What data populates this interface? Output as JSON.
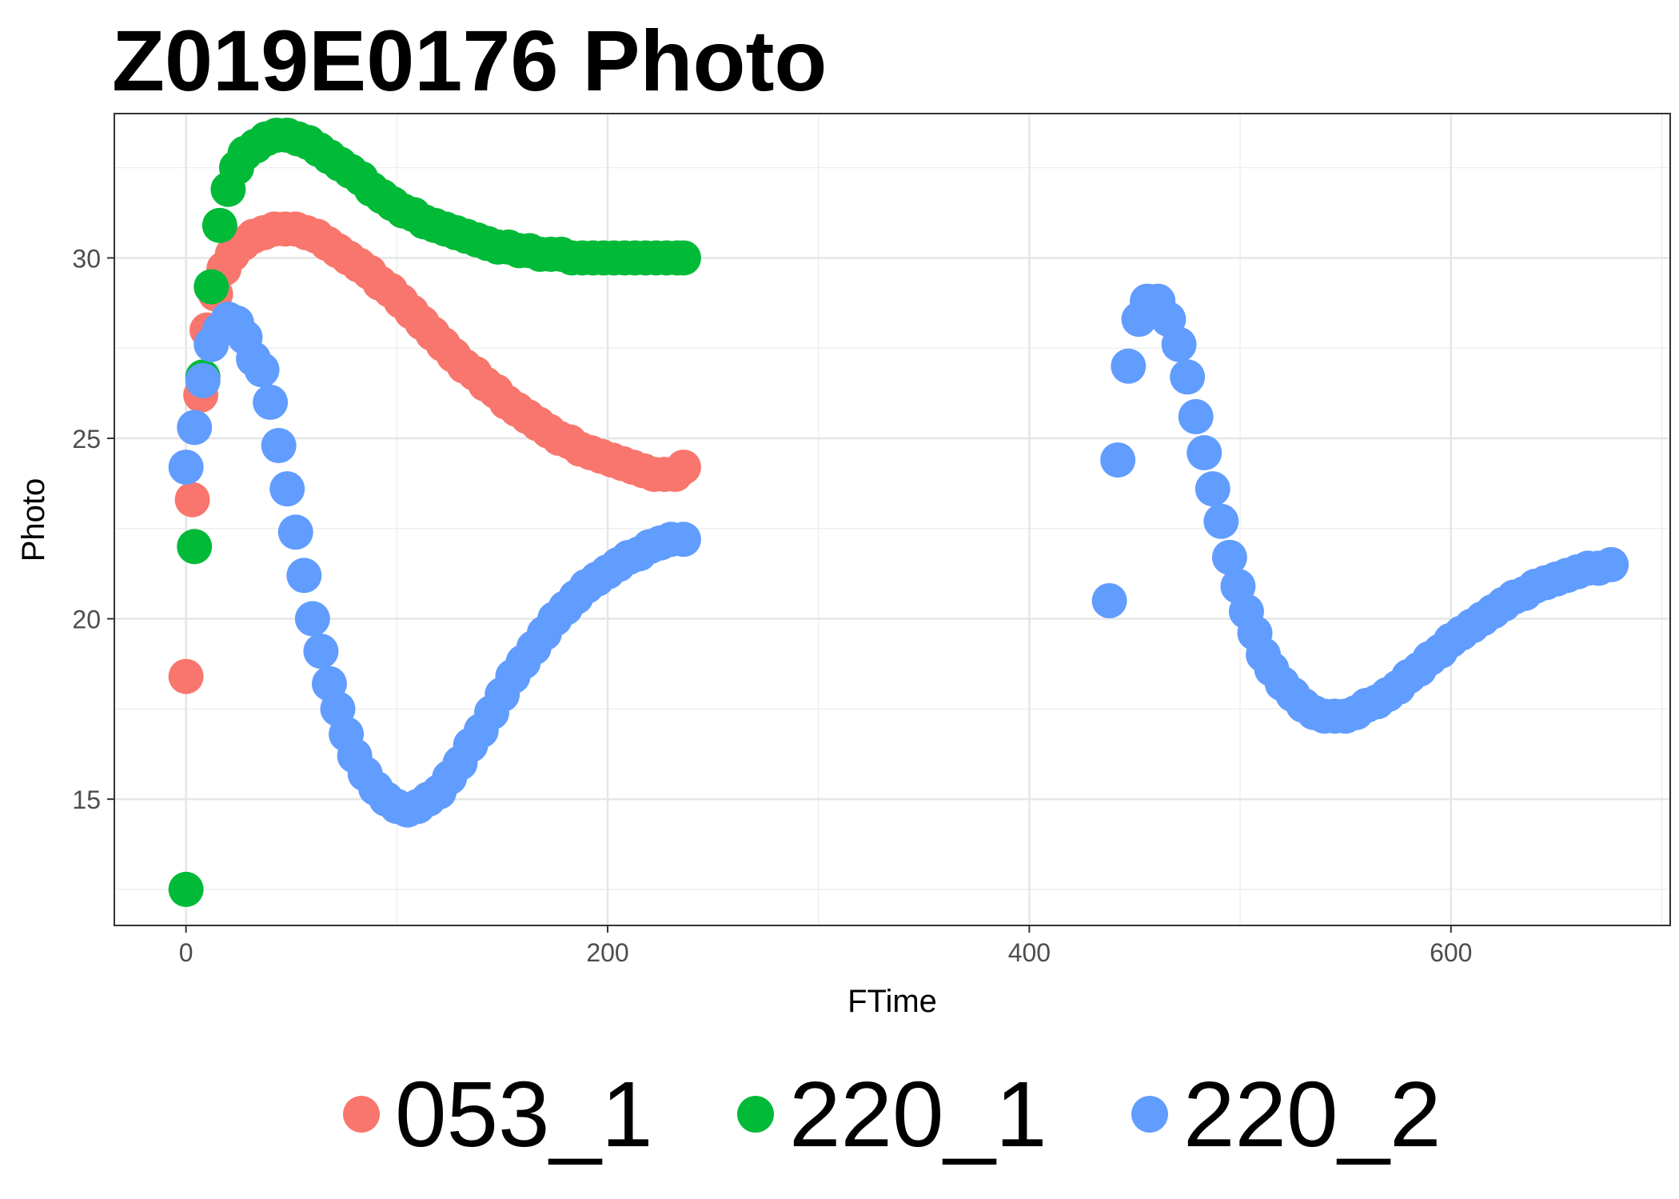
{
  "chart_data": {
    "type": "scatter",
    "title": "Z019E0176 Photo",
    "xlabel": "FTime",
    "ylabel": "Photo",
    "xlim": [
      -34,
      704
    ],
    "ylim": [
      11.5,
      34.0
    ],
    "x_ticks": [
      0,
      200,
      400,
      600
    ],
    "y_ticks": [
      15,
      20,
      25,
      30
    ],
    "grid": true,
    "legend_position": "bottom",
    "series": [
      {
        "name": "053_1",
        "color": "#F8766D",
        "points": [
          [
            0,
            18.4
          ],
          [
            3,
            23.3
          ],
          [
            7,
            26.2
          ],
          [
            10,
            28.0
          ],
          [
            14,
            29.0
          ],
          [
            18,
            29.7
          ],
          [
            22,
            30.1
          ],
          [
            27,
            30.4
          ],
          [
            32,
            30.6
          ],
          [
            37,
            30.7
          ],
          [
            42,
            30.8
          ],
          [
            47,
            30.8
          ],
          [
            52,
            30.8
          ],
          [
            57,
            30.7
          ],
          [
            62,
            30.6
          ],
          [
            67,
            30.4
          ],
          [
            72,
            30.2
          ],
          [
            77,
            30.0
          ],
          [
            82,
            29.8
          ],
          [
            87,
            29.6
          ],
          [
            92,
            29.3
          ],
          [
            97,
            29.1
          ],
          [
            102,
            28.8
          ],
          [
            107,
            28.5
          ],
          [
            112,
            28.2
          ],
          [
            117,
            27.9
          ],
          [
            122,
            27.6
          ],
          [
            127,
            27.3
          ],
          [
            132,
            27.0
          ],
          [
            137,
            26.8
          ],
          [
            142,
            26.5
          ],
          [
            147,
            26.3
          ],
          [
            152,
            26.0
          ],
          [
            157,
            25.8
          ],
          [
            162,
            25.6
          ],
          [
            167,
            25.4
          ],
          [
            172,
            25.2
          ],
          [
            177,
            25.0
          ],
          [
            182,
            24.9
          ],
          [
            187,
            24.7
          ],
          [
            192,
            24.6
          ],
          [
            197,
            24.5
          ],
          [
            202,
            24.4
          ],
          [
            207,
            24.3
          ],
          [
            212,
            24.2
          ],
          [
            217,
            24.1
          ],
          [
            222,
            24.0
          ],
          [
            227,
            24.0
          ],
          [
            232,
            24.0
          ],
          [
            236,
            24.2
          ]
        ]
      },
      {
        "name": "220_1",
        "color": "#00BA38",
        "points": [
          [
            0,
            12.5
          ],
          [
            4,
            22.0
          ],
          [
            8,
            26.7
          ],
          [
            12,
            29.2
          ],
          [
            16,
            30.9
          ],
          [
            20,
            31.9
          ],
          [
            24,
            32.5
          ],
          [
            28,
            32.9
          ],
          [
            33,
            33.1
          ],
          [
            38,
            33.3
          ],
          [
            43,
            33.4
          ],
          [
            48,
            33.4
          ],
          [
            53,
            33.3
          ],
          [
            58,
            33.2
          ],
          [
            63,
            33.0
          ],
          [
            68,
            32.8
          ],
          [
            73,
            32.6
          ],
          [
            78,
            32.4
          ],
          [
            83,
            32.2
          ],
          [
            88,
            31.9
          ],
          [
            93,
            31.7
          ],
          [
            98,
            31.5
          ],
          [
            103,
            31.3
          ],
          [
            108,
            31.2
          ],
          [
            113,
            31.0
          ],
          [
            118,
            30.9
          ],
          [
            123,
            30.8
          ],
          [
            128,
            30.7
          ],
          [
            133,
            30.6
          ],
          [
            138,
            30.5
          ],
          [
            143,
            30.4
          ],
          [
            148,
            30.3
          ],
          [
            153,
            30.3
          ],
          [
            158,
            30.2
          ],
          [
            163,
            30.2
          ],
          [
            168,
            30.1
          ],
          [
            173,
            30.1
          ],
          [
            178,
            30.1
          ],
          [
            183,
            30.0
          ],
          [
            188,
            30.0
          ],
          [
            193,
            30.0
          ],
          [
            198,
            30.0
          ],
          [
            203,
            30.0
          ],
          [
            208,
            30.0
          ],
          [
            213,
            30.0
          ],
          [
            218,
            30.0
          ],
          [
            223,
            30.0
          ],
          [
            228,
            30.0
          ],
          [
            233,
            30.0
          ],
          [
            236,
            30.0
          ]
        ]
      },
      {
        "name": "220_2",
        "color": "#619CFF",
        "points": [
          [
            0,
            24.2
          ],
          [
            4,
            25.3
          ],
          [
            8,
            26.6
          ],
          [
            12,
            27.6
          ],
          [
            16,
            28.0
          ],
          [
            20,
            28.3
          ],
          [
            24,
            28.2
          ],
          [
            28,
            27.8
          ],
          [
            32,
            27.2
          ],
          [
            36,
            26.9
          ],
          [
            40,
            26.0
          ],
          [
            44,
            24.8
          ],
          [
            48,
            23.6
          ],
          [
            52,
            22.4
          ],
          [
            56,
            21.2
          ],
          [
            60,
            20.0
          ],
          [
            64,
            19.1
          ],
          [
            68,
            18.2
          ],
          [
            72,
            17.5
          ],
          [
            76,
            16.8
          ],
          [
            80,
            16.2
          ],
          [
            85,
            15.7
          ],
          [
            90,
            15.3
          ],
          [
            95,
            15.0
          ],
          [
            100,
            14.8
          ],
          [
            105,
            14.7
          ],
          [
            110,
            14.8
          ],
          [
            115,
            15.0
          ],
          [
            120,
            15.2
          ],
          [
            125,
            15.6
          ],
          [
            130,
            16.0
          ],
          [
            135,
            16.5
          ],
          [
            140,
            16.9
          ],
          [
            145,
            17.4
          ],
          [
            150,
            17.9
          ],
          [
            155,
            18.4
          ],
          [
            160,
            18.8
          ],
          [
            165,
            19.2
          ],
          [
            170,
            19.6
          ],
          [
            175,
            20.0
          ],
          [
            180,
            20.3
          ],
          [
            185,
            20.6
          ],
          [
            190,
            20.9
          ],
          [
            195,
            21.1
          ],
          [
            200,
            21.3
          ],
          [
            205,
            21.5
          ],
          [
            210,
            21.7
          ],
          [
            215,
            21.8
          ],
          [
            220,
            22.0
          ],
          [
            225,
            22.1
          ],
          [
            230,
            22.2
          ],
          [
            236,
            22.2
          ],
          [
            438,
            20.5
          ],
          [
            442,
            24.4
          ],
          [
            447,
            27.0
          ],
          [
            452,
            28.3
          ],
          [
            456,
            28.8
          ],
          [
            461,
            28.8
          ],
          [
            466,
            28.3
          ],
          [
            471,
            27.6
          ],
          [
            475,
            26.7
          ],
          [
            479,
            25.6
          ],
          [
            483,
            24.6
          ],
          [
            487,
            23.6
          ],
          [
            491,
            22.7
          ],
          [
            495,
            21.7
          ],
          [
            499,
            20.9
          ],
          [
            503,
            20.2
          ],
          [
            507,
            19.6
          ],
          [
            511,
            19.0
          ],
          [
            515,
            18.6
          ],
          [
            520,
            18.2
          ],
          [
            525,
            17.9
          ],
          [
            530,
            17.6
          ],
          [
            535,
            17.4
          ],
          [
            540,
            17.3
          ],
          [
            545,
            17.3
          ],
          [
            550,
            17.3
          ],
          [
            555,
            17.4
          ],
          [
            560,
            17.6
          ],
          [
            565,
            17.7
          ],
          [
            570,
            17.9
          ],
          [
            575,
            18.1
          ],
          [
            580,
            18.4
          ],
          [
            585,
            18.6
          ],
          [
            590,
            18.9
          ],
          [
            595,
            19.1
          ],
          [
            600,
            19.4
          ],
          [
            605,
            19.6
          ],
          [
            610,
            19.8
          ],
          [
            615,
            20.0
          ],
          [
            620,
            20.2
          ],
          [
            625,
            20.4
          ],
          [
            630,
            20.6
          ],
          [
            635,
            20.7
          ],
          [
            640,
            20.9
          ],
          [
            645,
            21.0
          ],
          [
            650,
            21.1
          ],
          [
            655,
            21.2
          ],
          [
            660,
            21.3
          ],
          [
            665,
            21.4
          ],
          [
            670,
            21.4
          ],
          [
            676,
            21.5
          ]
        ]
      }
    ]
  }
}
